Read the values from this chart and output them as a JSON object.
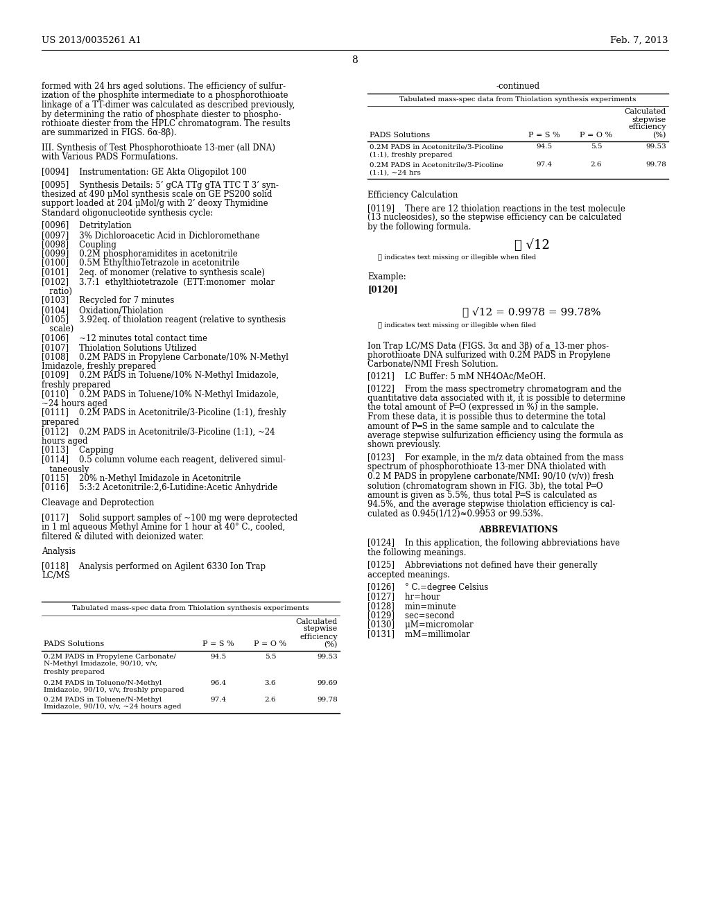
{
  "background_color": "#ffffff",
  "header_left": "US 2013/0035261 A1",
  "header_right": "Feb. 7, 2013",
  "page_number": "8",
  "table_main": {
    "title": "Tabulated mass-spec data from Thiolation synthesis experiments",
    "rows": [
      [
        "0.2M PADS in Propylene Carbonate/\nN-Methyl Imidazole, 90/10, v/v,\nfreshly prepared",
        "94.5",
        "5.5",
        "99.53"
      ],
      [
        "0.2M PADS in Toluene/N-Methyl\nImidazole, 90/10, v/v, freshly prepared",
        "96.4",
        "3.6",
        "99.69"
      ],
      [
        "0.2M PADS in Toluene/N-Methyl\nImidazole, 90/10, v/v, ~24 hours aged",
        "97.4",
        "2.6",
        "99.78"
      ]
    ]
  },
  "table_continued": {
    "title": "Tabulated mass-spec data from Thiolation synthesis experiments",
    "rows": [
      [
        "0.2M PADS in Acetonitrile/3-Picoline\n(1:1), freshly prepared",
        "94.5",
        "5.5",
        "99.53"
      ],
      [
        "0.2M PADS in Acetonitrile/3-Picoline\n(1:1), ~24 hrs",
        "97.4",
        "2.6",
        "99.78"
      ]
    ]
  }
}
